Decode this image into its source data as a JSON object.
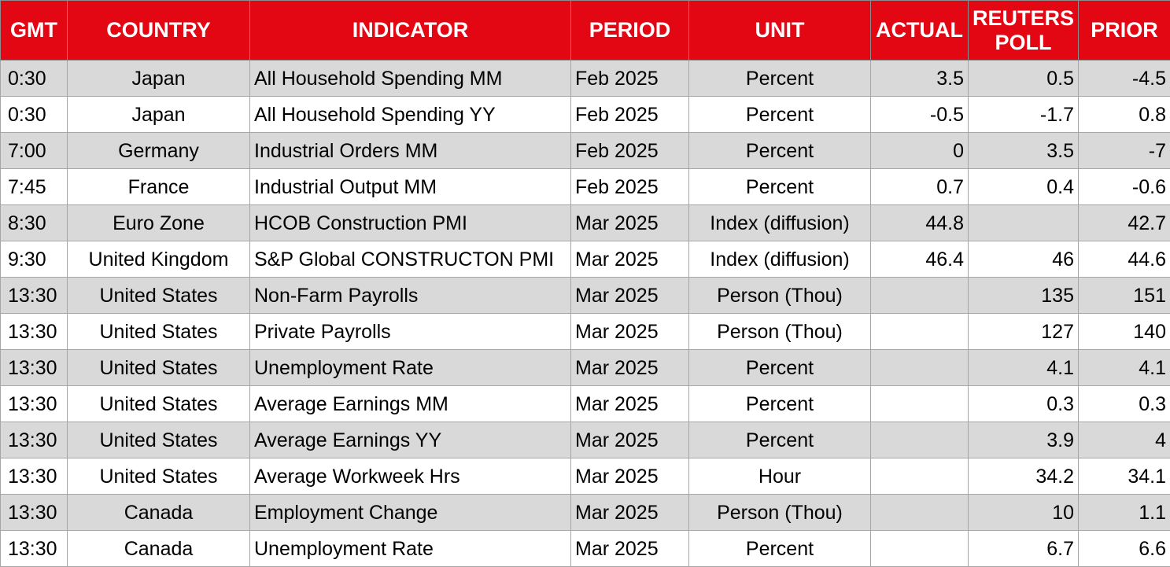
{
  "colors": {
    "header_background": "#e30613",
    "header_text": "#ffffff",
    "row_shaded": "#d9d9d9",
    "row_plain": "#ffffff"
  },
  "table": {
    "headers": [
      "GMT",
      "COUNTRY",
      "INDICATOR",
      "PERIOD",
      "UNIT",
      "ACTUAL",
      "REUTERS POLL",
      "PRIOR"
    ],
    "rows": [
      [
        "0:30",
        "Japan",
        "All Household Spending MM",
        "Feb 2025",
        "Percent",
        "3.5",
        "0.5",
        "-4.5"
      ],
      [
        "0:30",
        "Japan",
        "All Household Spending YY",
        "Feb 2025",
        "Percent",
        "-0.5",
        "-1.7",
        "0.8"
      ],
      [
        "7:00",
        "Germany",
        "Industrial Orders MM",
        "Feb 2025",
        "Percent",
        "0",
        "3.5",
        "-7"
      ],
      [
        "7:45",
        "France",
        "Industrial Output MM",
        "Feb 2025",
        "Percent",
        "0.7",
        "0.4",
        "-0.6"
      ],
      [
        "8:30",
        "Euro Zone",
        "HCOB Construction PMI",
        "Mar 2025",
        "Index (diffusion)",
        "44.8",
        "",
        "42.7"
      ],
      [
        "9:30",
        "United Kingdom",
        "S&P Global CONSTRUCTON PMI",
        "Mar 2025",
        "Index (diffusion)",
        "46.4",
        "46",
        "44.6"
      ],
      [
        "13:30",
        "United States",
        "Non-Farm Payrolls",
        "Mar 2025",
        "Person (Thou)",
        "",
        "135",
        "151"
      ],
      [
        "13:30",
        "United States",
        "Private Payrolls",
        "Mar 2025",
        "Person (Thou)",
        "",
        "127",
        "140"
      ],
      [
        "13:30",
        "United States",
        "Unemployment Rate",
        "Mar 2025",
        "Percent",
        "",
        "4.1",
        "4.1"
      ],
      [
        "13:30",
        "United States",
        "Average Earnings MM",
        "Mar 2025",
        "Percent",
        "",
        "0.3",
        "0.3"
      ],
      [
        "13:30",
        "United States",
        "Average Earnings YY",
        "Mar 2025",
        "Percent",
        "",
        "3.9",
        "4"
      ],
      [
        "13:30",
        "United States",
        "Average Workweek Hrs",
        "Mar 2025",
        "Hour",
        "",
        "34.2",
        "34.1"
      ],
      [
        "13:30",
        "Canada",
        "Employment Change",
        "Mar 2025",
        "Person (Thou)",
        "",
        "10",
        "1.1"
      ],
      [
        "13:30",
        "Canada",
        "Unemployment Rate",
        "Mar 2025",
        "Percent",
        "",
        "6.7",
        "6.6"
      ]
    ]
  }
}
